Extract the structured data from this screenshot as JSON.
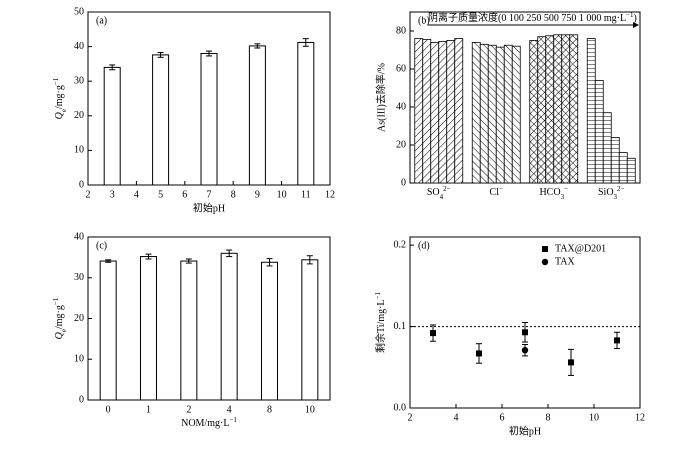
{
  "chart_data": [
    {
      "type": "bar",
      "title": "(a)",
      "x": [
        3,
        5,
        7,
        9,
        11
      ],
      "values": [
        34,
        37.6,
        38,
        40.2,
        41.2
      ],
      "errors": [
        0.7,
        0.7,
        0.7,
        0.6,
        1.1
      ],
      "color": "#ffffff",
      "edgecolor": "#000000",
      "xlim": [
        2,
        12
      ],
      "xticks": [
        2,
        3,
        4,
        5,
        6,
        7,
        8,
        9,
        10,
        11,
        12
      ],
      "ylim": [
        0,
        50
      ],
      "yticks": [
        0,
        10,
        20,
        30,
        40,
        50
      ],
      "xlabel": "初始pH",
      "ylabel": {
        "main": "Q",
        "sub": "e",
        "text": "/mg·g",
        "sup": "−1"
      }
    },
    {
      "type": "bar",
      "title": "(b)",
      "categories": [
        {
          "text": "SO",
          "sub": "4",
          "sup": "2−"
        },
        {
          "text": "Cl",
          "sup": "−"
        },
        {
          "text": "HCO",
          "sub": "3",
          "sup": "−"
        },
        {
          "text": "SiO",
          "sub": "3",
          "sup": "2−"
        }
      ],
      "series": [
        {
          "values": [
            76,
            74,
            75,
            76
          ]
        },
        {
          "values": [
            75.5,
            73,
            77,
            54
          ]
        },
        {
          "values": [
            74,
            72.5,
            77.5,
            37
          ]
        },
        {
          "values": [
            74.5,
            71.5,
            78,
            24
          ]
        },
        {
          "values": [
            75,
            72.5,
            78,
            16
          ]
        },
        {
          "values": [
            76,
            72,
            78,
            13
          ]
        }
      ],
      "hatches": [
        "/",
        "\\",
        "x",
        "-"
      ],
      "color": "#ffffff",
      "edgecolor": "#000000",
      "ylim": [
        0,
        90
      ],
      "yticks": [
        0,
        20,
        40,
        60,
        80
      ],
      "ylabel": "As(III)去除率/%",
      "annotation": {
        "text": "阴离子质量浓度(0 100 250 500 750 1 000 mg·L",
        "sup": "−1",
        "end": ")"
      }
    },
    {
      "type": "bar",
      "title": "(c)",
      "categories": [
        "0",
        "1",
        "2",
        "4",
        "8",
        "10"
      ],
      "values": [
        34.1,
        35.2,
        34.1,
        36,
        33.8,
        34.4
      ],
      "errors": [
        0.3,
        0.6,
        0.5,
        0.8,
        0.9,
        1.0
      ],
      "color": "#ffffff",
      "edgecolor": "#000000",
      "ylim": [
        0,
        40
      ],
      "yticks": [
        0,
        10,
        20,
        30,
        40
      ],
      "xlabel": {
        "text": "NOM/mg·L",
        "sup": "−1"
      },
      "ylabel": {
        "main": "Q",
        "sub": "e",
        "text": "/mg·g",
        "sup": "−1"
      }
    },
    {
      "type": "scatter",
      "title": "(d)",
      "series": [
        {
          "name": "TAX@D201",
          "marker": "square",
          "color": "#000000",
          "x": [
            3,
            5,
            7,
            9,
            11
          ],
          "values": [
            0.092,
            0.067,
            0.093,
            0.056,
            0.083
          ],
          "errors": [
            0.01,
            0.012,
            0.012,
            0.016,
            0.01
          ]
        },
        {
          "name": "TAX",
          "marker": "circle",
          "color": "#000000",
          "x": [
            7
          ],
          "values": [
            0.071
          ],
          "errors": [
            0.007
          ]
        }
      ],
      "xlim": [
        2,
        12
      ],
      "xticks": [
        2,
        4,
        6,
        8,
        10,
        12
      ],
      "ylim": [
        0,
        0.21
      ],
      "yticks": [
        {
          "value": 0,
          "label": "0.0"
        },
        {
          "value": 0.1,
          "label": "0.1"
        },
        {
          "value": 0.2,
          "label": "0.2"
        }
      ],
      "hline": 0.1,
      "legend": "upper right",
      "xlabel": "初始pH",
      "ylabel": {
        "text": "剩余Ti/mg·L",
        "sup": "−1"
      }
    }
  ]
}
